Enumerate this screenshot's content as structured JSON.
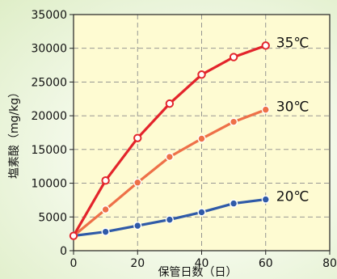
{
  "chart_data": {
    "type": "line",
    "title": "",
    "xlabel": "保管日数（日）",
    "ylabel": "塩素酸（mg/kg）",
    "xlim": [
      0,
      80
    ],
    "ylim": [
      0,
      35000
    ],
    "x_ticks": [
      "0",
      "20",
      "40",
      "60",
      "80"
    ],
    "y_ticks": [
      "0",
      "5000",
      "10000",
      "15000",
      "20000",
      "25000",
      "30000",
      "35000"
    ],
    "grid": true,
    "plot_background": "#fefbd2",
    "series": [
      {
        "name": "20℃",
        "color": "#2f5aa8",
        "marker": "filled-circle",
        "x": [
          0,
          10,
          20,
          30,
          40,
          50,
          60
        ],
        "y": [
          2200,
          2800,
          3700,
          4600,
          5700,
          7000,
          7600
        ]
      },
      {
        "name": "30℃",
        "color": "#ee7048",
        "marker": "filled-circle",
        "x": [
          0,
          10,
          20,
          30,
          40,
          50,
          60
        ],
        "y": [
          2200,
          6100,
          10100,
          13900,
          16600,
          19100,
          20900
        ]
      },
      {
        "name": "35℃",
        "color": "#e3242b",
        "marker": "open-circle",
        "x": [
          0,
          10,
          20,
          30,
          40,
          50,
          60
        ],
        "y": [
          2200,
          10400,
          16700,
          21800,
          26100,
          28700,
          30400
        ]
      }
    ]
  }
}
